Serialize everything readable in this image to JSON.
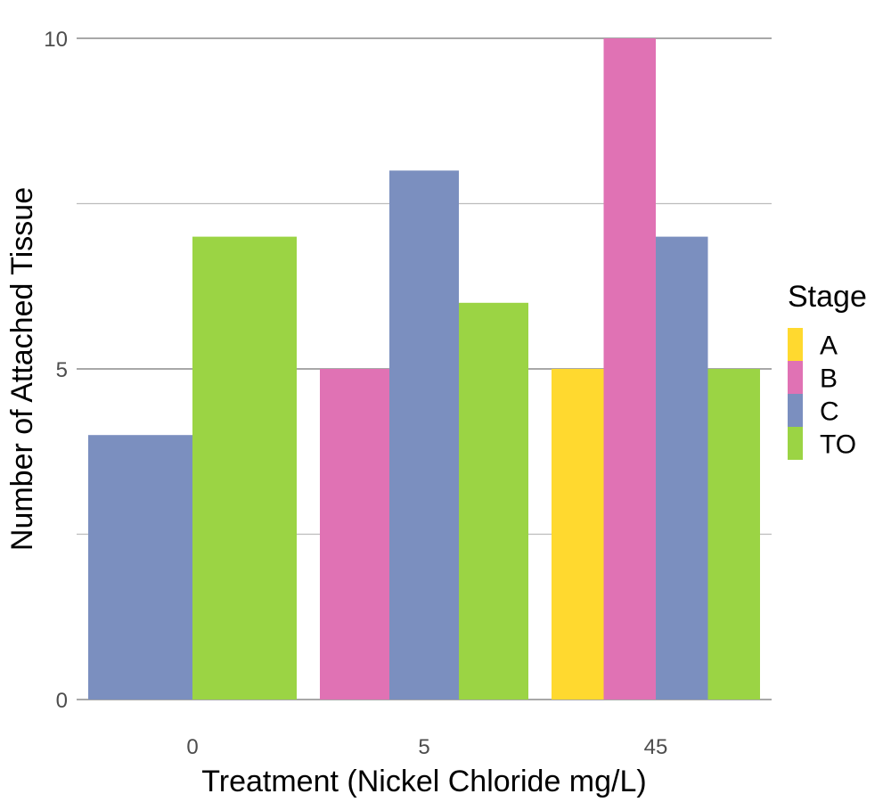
{
  "chart_data": {
    "type": "bar",
    "xlabel": "Treatment (Nickel Chloride mg/L)",
    "ylabel": "Number of Attached Tissue",
    "categories": [
      "0",
      "5",
      "45"
    ],
    "ylim": [
      0,
      10
    ],
    "yticks": [
      0,
      5,
      10
    ],
    "minor_gridlines": [
      2.5,
      7.5
    ],
    "grid": true,
    "legend": {
      "title": "Stage",
      "placement": "right",
      "entries": [
        {
          "label": "A",
          "color": "#FFD92F"
        },
        {
          "label": "B",
          "color": "#E072B4"
        },
        {
          "label": "C",
          "color": "#7B8FBF"
        },
        {
          "label": "TO",
          "color": "#9BD444"
        }
      ]
    },
    "series": [
      {
        "name": "A",
        "color": "#FFD92F",
        "values": [
          null,
          null,
          5
        ]
      },
      {
        "name": "B",
        "color": "#E072B4",
        "values": [
          null,
          5,
          10
        ]
      },
      {
        "name": "C",
        "color": "#7B8FBF",
        "values": [
          4,
          8,
          7
        ]
      },
      {
        "name": "TO",
        "color": "#9BD444",
        "values": [
          7,
          6,
          5
        ]
      }
    ]
  }
}
